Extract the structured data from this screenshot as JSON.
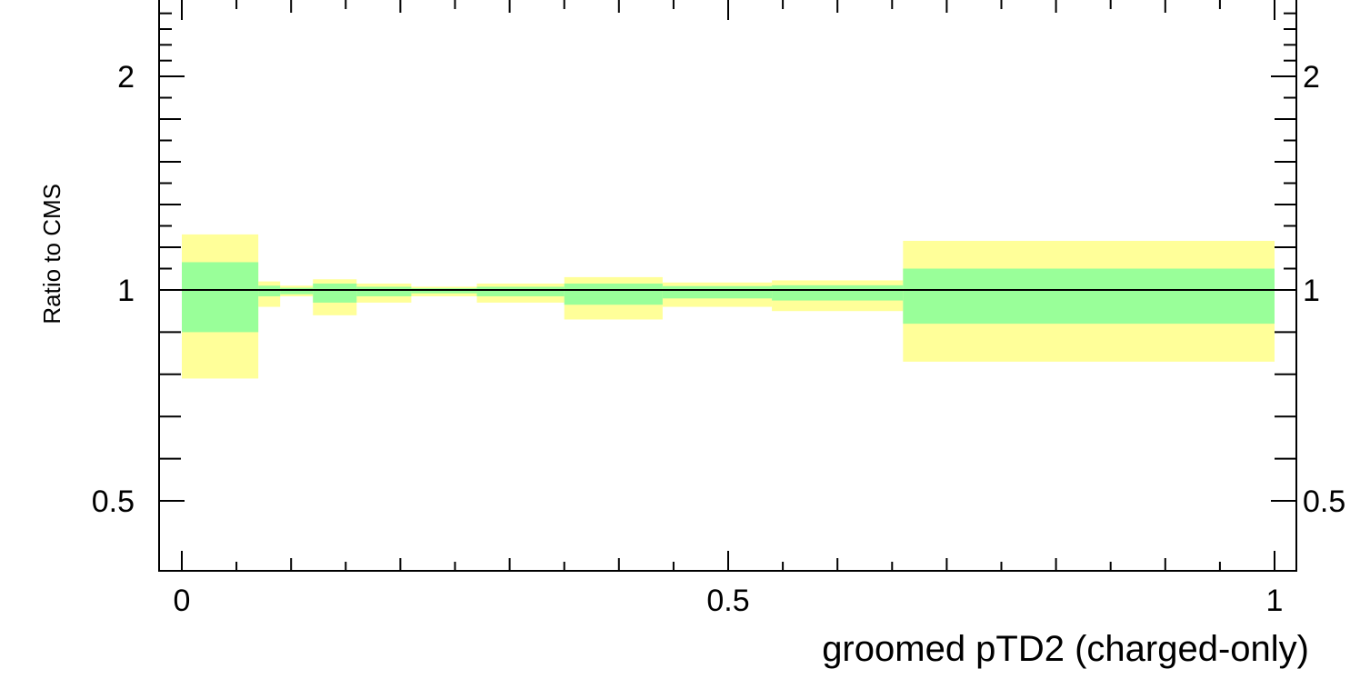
{
  "chart_data": {
    "type": "area",
    "xlabel": "groomed pTD2 (charged-only)",
    "ylabel": "Ratio to CMS",
    "xlim": [
      -0.02,
      1.02
    ],
    "ylim": [
      0.1,
      2.7
    ],
    "y_scale": "nonlinear",
    "reference_line": 1,
    "x_ticks": [
      {
        "value": 0,
        "label": "0"
      },
      {
        "value": 0.5,
        "label": "0.5"
      },
      {
        "value": 1,
        "label": "1"
      }
    ],
    "y_ticks": [
      {
        "value": 0.5,
        "label": "0.5"
      },
      {
        "value": 1,
        "label": "1"
      },
      {
        "value": 2,
        "label": "2"
      }
    ],
    "series": [
      {
        "color": "#ffff99",
        "bins": [
          {
            "x0": 0.0,
            "x1": 0.07,
            "low": 0.79,
            "high": 1.26
          },
          {
            "x0": 0.07,
            "x1": 0.09,
            "low": 0.96,
            "high": 1.04
          },
          {
            "x0": 0.09,
            "x1": 0.12,
            "low": 0.985,
            "high": 1.02
          },
          {
            "x0": 0.12,
            "x1": 0.16,
            "low": 0.94,
            "high": 1.05
          },
          {
            "x0": 0.16,
            "x1": 0.21,
            "low": 0.97,
            "high": 1.03
          },
          {
            "x0": 0.21,
            "x1": 0.27,
            "low": 0.985,
            "high": 1.015
          },
          {
            "x0": 0.27,
            "x1": 0.35,
            "low": 0.97,
            "high": 1.03
          },
          {
            "x0": 0.35,
            "x1": 0.44,
            "low": 0.93,
            "high": 1.06
          },
          {
            "x0": 0.44,
            "x1": 0.54,
            "low": 0.96,
            "high": 1.035
          },
          {
            "x0": 0.54,
            "x1": 0.66,
            "low": 0.95,
            "high": 1.045
          },
          {
            "x0": 0.66,
            "x1": 1.0,
            "low": 0.83,
            "high": 1.23
          }
        ]
      },
      {
        "color": "#99ff99",
        "bins": [
          {
            "x0": 0.0,
            "x1": 0.07,
            "low": 0.9,
            "high": 1.13
          },
          {
            "x0": 0.07,
            "x1": 0.09,
            "low": 0.985,
            "high": 1.02
          },
          {
            "x0": 0.09,
            "x1": 0.12,
            "low": 0.99,
            "high": 1.01
          },
          {
            "x0": 0.12,
            "x1": 0.16,
            "low": 0.97,
            "high": 1.03
          },
          {
            "x0": 0.16,
            "x1": 0.21,
            "low": 0.985,
            "high": 1.015
          },
          {
            "x0": 0.21,
            "x1": 0.27,
            "low": 0.992,
            "high": 1.008
          },
          {
            "x0": 0.27,
            "x1": 0.35,
            "low": 0.985,
            "high": 1.015
          },
          {
            "x0": 0.35,
            "x1": 0.44,
            "low": 0.965,
            "high": 1.03
          },
          {
            "x0": 0.44,
            "x1": 0.54,
            "low": 0.98,
            "high": 1.018
          },
          {
            "x0": 0.54,
            "x1": 0.66,
            "low": 0.975,
            "high": 1.022
          },
          {
            "x0": 0.66,
            "x1": 1.0,
            "low": 0.92,
            "high": 1.1
          }
        ]
      }
    ]
  }
}
